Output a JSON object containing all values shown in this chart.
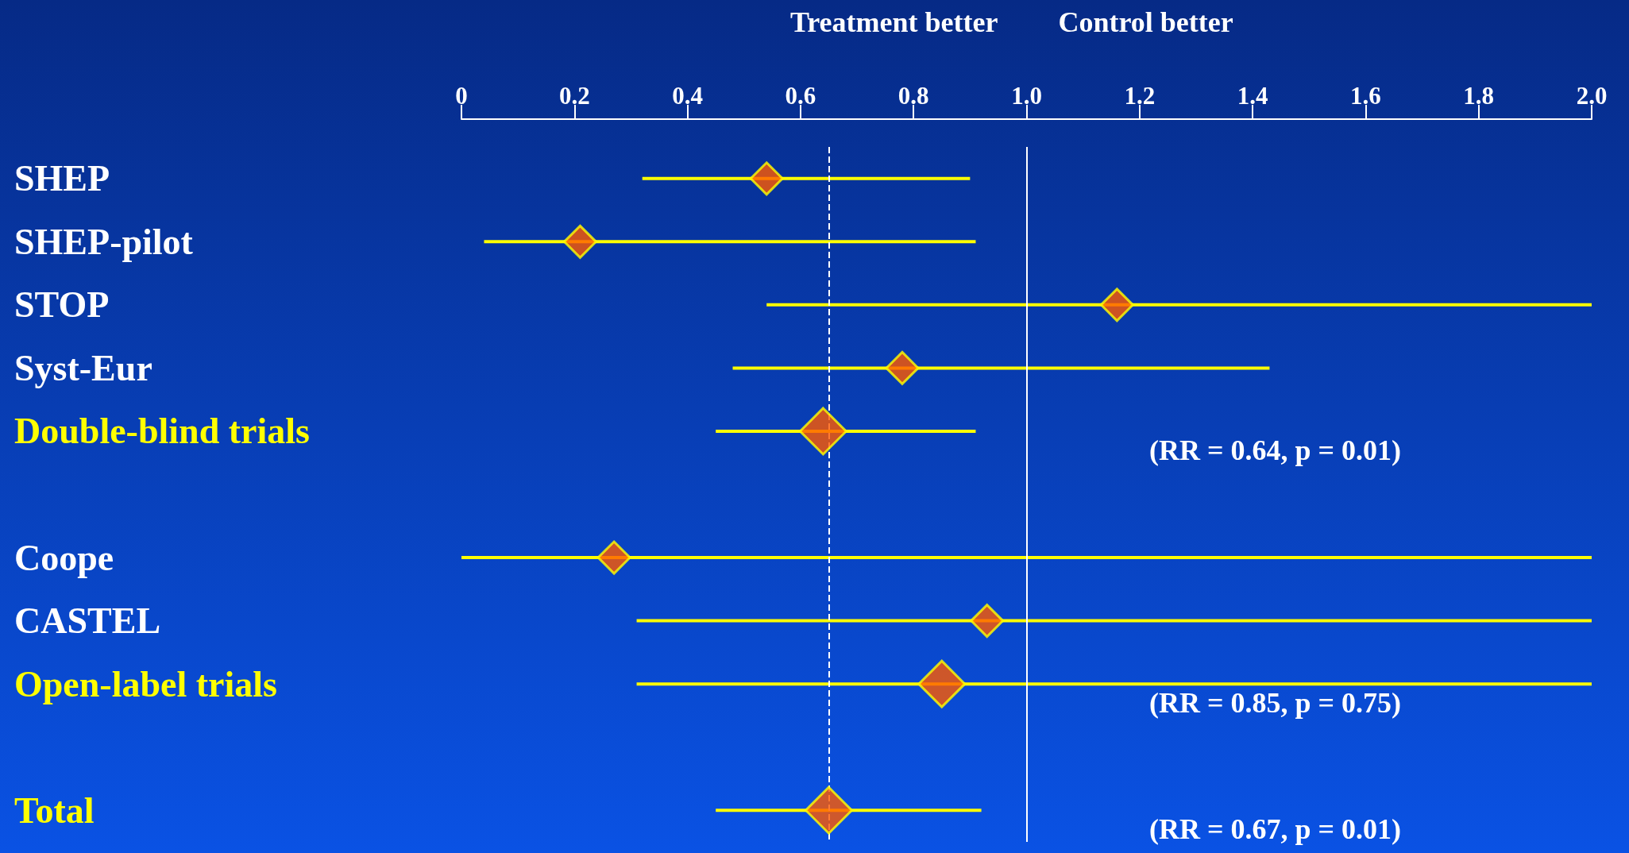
{
  "chart_data": {
    "type": "scatter",
    "orientation": "horizontal",
    "categories": [
      "SHEP",
      "SHEP-pilot",
      "STOP",
      "Syst-Eur",
      "Double-blind trials",
      null,
      "Coope",
      "CASTEL",
      "Open-label trials",
      null,
      "Total"
    ],
    "series": [
      {
        "color": "#ff5a00",
        "values": [
          0.54,
          0.21,
          1.16,
          0.78,
          null,
          null,
          0.27,
          0.93,
          null,
          null,
          null
        ],
        "errors": [
          [
            0.32,
            0.9
          ],
          [
            0.04,
            0.91
          ],
          [
            0.54,
            2.0
          ],
          [
            0.48,
            1.43
          ],
          null,
          null,
          [
            0,
            2.0
          ],
          [
            0.31,
            2.0
          ],
          null,
          null,
          null
        ]
      },
      {
        "color": "#ff5a00",
        "values": [
          null,
          null,
          null,
          null,
          0.64,
          null,
          null,
          null,
          0.85,
          null,
          0.65
        ],
        "errors": [
          null,
          null,
          null,
          null,
          [
            0.45,
            0.91
          ],
          null,
          null,
          null,
          [
            0.31,
            2.0
          ],
          null,
          [
            0.45,
            0.92
          ]
        ]
      }
    ],
    "xlim": [
      0,
      2
    ],
    "xticks": [
      0,
      0.2,
      0.4,
      0.6,
      0.8,
      {
        "value": 1,
        "label": "1.0"
      },
      1.2,
      1.4,
      1.6,
      1.8,
      {
        "value": 2,
        "label": "2.0"
      }
    ],
    "ref_lines": [
      {
        "axis": "x",
        "value": 1,
        "color": "#ffffff",
        "line_style": "solid"
      },
      {
        "axis": "x",
        "value": 0.65,
        "color": "#ffffff",
        "line_style": "dashed"
      }
    ],
    "annotations": [
      "Treatment better",
      "Control better",
      "(RR = 0.64, p = 0.01)",
      "(RR = 0.85, p = 0.75)",
      "(RR = 0.67, p = 0.01)"
    ],
    "marker": "diamond",
    "grid": false
  }
}
